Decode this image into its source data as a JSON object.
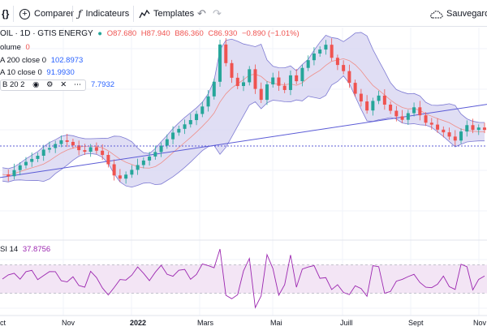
{
  "toolbar": {
    "compare_label": "Comparer",
    "indicators_label": "Indicateurs",
    "templates_label": "Templates",
    "save_label": "Sauvegarder"
  },
  "symbol": {
    "title": "OIL · 1D · GTIS ENERGY",
    "open": "O87.680",
    "high": "H87.940",
    "low": "B86.360",
    "close": "C86.930",
    "change": "−0.890 (−1.01%)"
  },
  "indicators": {
    "volume_label": "olume",
    "volume_value": "0",
    "ma200_label": "A 200 close 0",
    "ma200_value": "102.8973",
    "ma10_label": "A 10 close 0",
    "ma10_value": "91.9930",
    "bb_label": "B 20 2",
    "bb_value": "7.7932",
    "rsi_label": "SI 14",
    "rsi_value": "37.8756"
  },
  "time_axis": [
    "ct",
    "Nov",
    "2022",
    "Mars",
    "Mai",
    "Juill",
    "Sept",
    "Nov"
  ],
  "colors": {
    "up": "#26a69a",
    "down": "#ef5350",
    "bb_fill": "#d8d6f1",
    "ma200": "#5b5bd6",
    "rsi": "#9c27b0",
    "rsi_band": "#f3e5f5"
  },
  "chart_data": {
    "type": "candlestick",
    "series": [
      {
        "name": "OIL",
        "values": [
          70.2,
          69.5,
          71.8,
          73.6,
          74.9,
          76.0,
          77.2,
          79.5,
          80.1,
          81.6,
          83.0,
          82.4,
          81.1,
          79.3,
          78.7,
          80.4,
          79.1,
          77.5,
          74.0,
          69.8,
          68.6,
          70.1,
          71.9,
          73.7,
          75.4,
          76.9,
          78.6,
          81.0,
          83.4,
          85.9,
          87.3,
          89.0,
          90.6,
          92.9,
          95.7,
          99.5,
          105.0,
          119.0,
          112.0,
          106.5,
          103.4,
          104.8,
          109.7,
          102.3,
          98.2,
          104.0,
          106.6,
          103.5,
          101.9,
          107.4,
          105.2,
          110.2,
          113.1,
          115.6,
          117.1,
          118.9,
          114.0,
          111.3,
          109.0,
          104.6,
          100.5,
          97.6,
          94.2,
          97.8,
          99.8,
          96.4,
          94.1,
          92.0,
          90.7,
          93.2,
          95.4,
          92.4,
          89.6,
          88.9,
          87.0,
          86.0,
          84.4,
          82.9,
          86.3,
          88.7,
          86.9,
          87.8,
          86.9
        ]
      }
    ],
    "ma200": {
      "start": 69.0,
      "end": 96.5
    },
    "rsi_levels": [
      70,
      30
    ],
    "grid": true
  }
}
